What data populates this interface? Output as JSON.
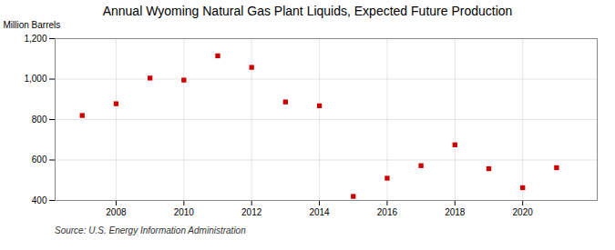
{
  "chart_data": {
    "type": "scatter",
    "title": "Annual Wyoming Natural Gas Plant Liquids, Expected Future Production",
    "ylabel": "Million Barrels",
    "source": "Source: U.S. Energy Information Administration",
    "x": [
      2007,
      2008,
      2009,
      2010,
      2011,
      2012,
      2013,
      2014,
      2015,
      2016,
      2017,
      2018,
      2019,
      2020,
      2021
    ],
    "values": [
      820,
      878,
      1005,
      995,
      1115,
      1058,
      887,
      868,
      420,
      510,
      572,
      675,
      557,
      463,
      562
    ],
    "color": "#cc0000",
    "marker": "square",
    "xlim": [
      2006.2,
      2022.2
    ],
    "xticks": [
      2008,
      2010,
      2012,
      2014,
      2016,
      2018,
      2020
    ],
    "ylim": [
      400,
      1200
    ],
    "yticks": [
      400,
      600,
      800,
      {
        "value": 1000,
        "label": "1,000"
      },
      {
        "value": 1200,
        "label": "1,200"
      }
    ],
    "grid": true
  }
}
